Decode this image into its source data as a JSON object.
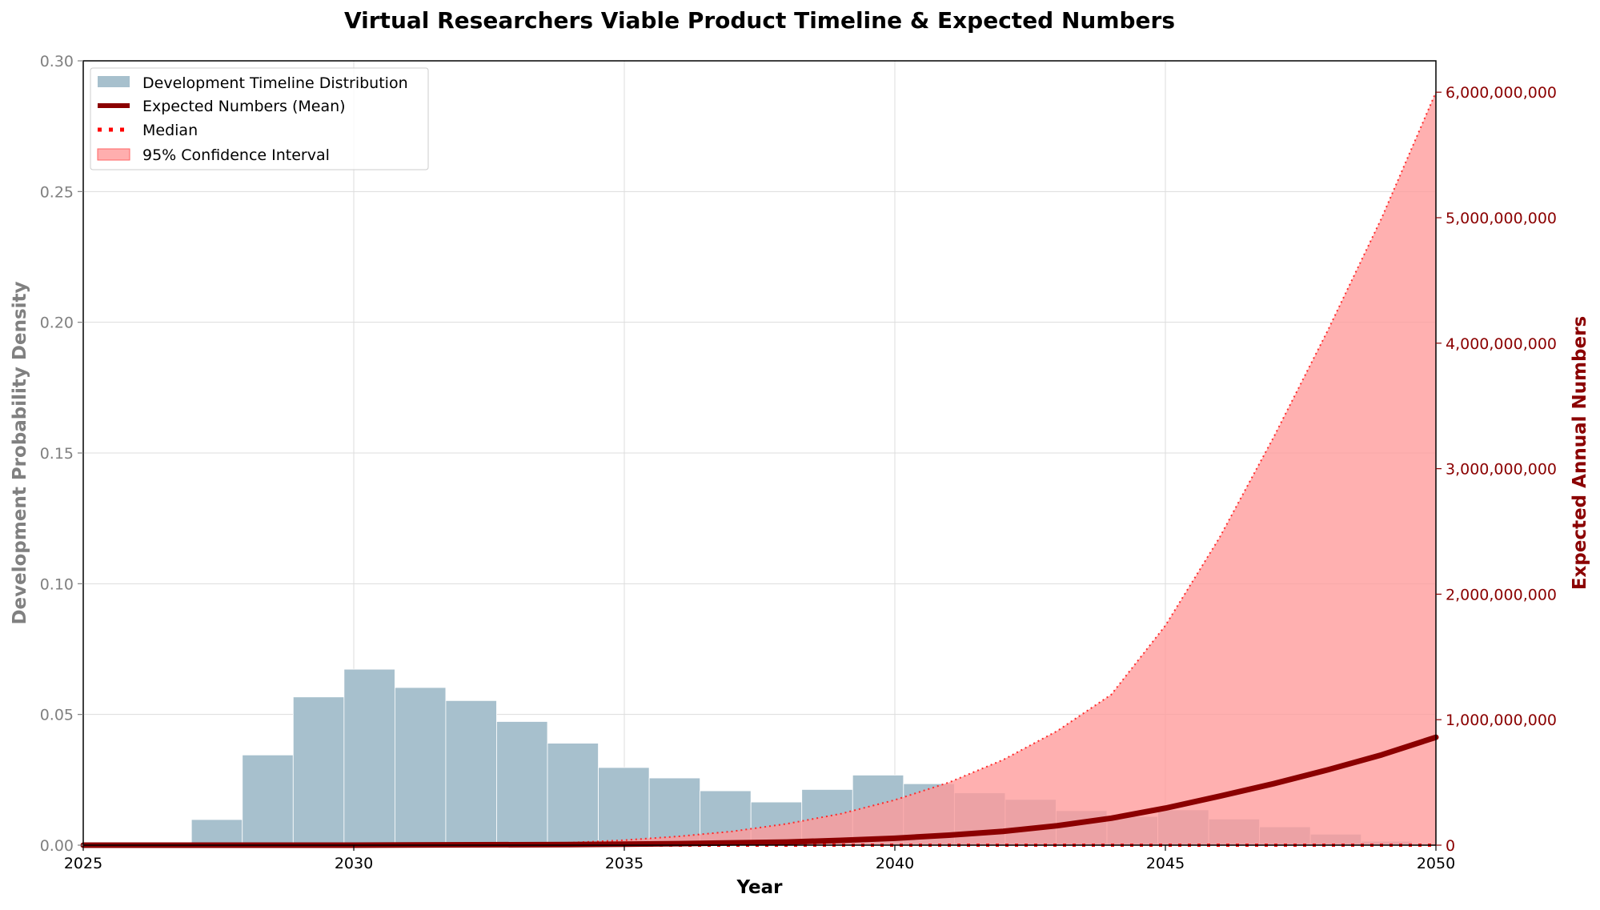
{
  "chart_data": {
    "type": "bar+line",
    "title": "Virtual Researchers Viable Product Timeline & Expected Numbers",
    "xlabel": "Year",
    "ylabel_left": "Development Probability Density",
    "ylabel_right": "Expected Annual Numbers",
    "xlim": [
      2025,
      2050
    ],
    "ylim_left": [
      0,
      0.3
    ],
    "ylim_right": [
      0,
      6250000000
    ],
    "x_ticks": [
      "2025",
      "2030",
      "2035",
      "2040",
      "2045",
      "2050"
    ],
    "y_left_ticks": [
      "0.00",
      "0.05",
      "0.10",
      "0.15",
      "0.20",
      "0.25",
      "0.30"
    ],
    "y_right_ticks": [
      "0",
      "1,000,000,000",
      "2,000,000,000",
      "3,000,000,000",
      "4,000,000,000",
      "5,000,000,000",
      "6,000,000,000"
    ],
    "grid": true,
    "legend_position": "top-left",
    "colors": {
      "histogram": "#a7c0cd",
      "mean": "#8b0000",
      "median": "#ff0000",
      "ci_fill": "#ff9a9a",
      "right_axis": "#8b0000",
      "left_axis": "#808080"
    },
    "histogram": {
      "name": "Development Timeline Distribution",
      "bin_edges": [
        2027.0,
        2027.94,
        2028.88,
        2029.82,
        2030.76,
        2031.7,
        2032.64,
        2033.58,
        2034.52,
        2035.46,
        2036.4,
        2037.34,
        2038.28,
        2039.22,
        2040.16,
        2041.1,
        2042.04,
        2042.98,
        2043.92,
        2044.86,
        2045.8,
        2046.74,
        2047.68,
        2048.62,
        2049.56
      ],
      "values": [
        0.0098,
        0.0345,
        0.0567,
        0.0673,
        0.0603,
        0.0553,
        0.0473,
        0.039,
        0.0297,
        0.0257,
        0.0208,
        0.0165,
        0.0213,
        0.0268,
        0.0235,
        0.02,
        0.0175,
        0.0132,
        0.011,
        0.0135,
        0.01,
        0.007,
        0.0042,
        0.0015
      ]
    },
    "series": [
      {
        "name": "Expected Numbers (Mean)",
        "x": [
          2025,
          2030,
          2034,
          2035,
          2036,
          2037,
          2038,
          2039,
          2040,
          2041,
          2042,
          2043,
          2044,
          2045,
          2046,
          2047,
          2048,
          2049,
          2050
        ],
        "values": [
          0,
          0,
          5000000,
          8000000,
          12000000,
          18000000,
          25000000,
          38000000,
          55000000,
          80000000,
          110000000,
          155000000,
          215000000,
          295000000,
          390000000,
          490000000,
          600000000,
          720000000,
          860000000
        ]
      },
      {
        "name": "Median",
        "x": [
          2025,
          2050
        ],
        "values": [
          0,
          0
        ]
      },
      {
        "name": "95% Confidence Interval",
        "x": [
          2025,
          2030,
          2033,
          2034,
          2035,
          2036,
          2037,
          2038,
          2039,
          2040,
          2041,
          2042,
          2043,
          2044,
          2045,
          2046,
          2047,
          2048,
          2049,
          2050
        ],
        "lower": [
          0,
          0,
          0,
          0,
          0,
          0,
          0,
          0,
          0,
          0,
          0,
          0,
          0,
          0,
          0,
          0,
          0,
          0,
          0,
          0
        ],
        "upper": [
          0,
          0,
          10000000,
          20000000,
          40000000,
          70000000,
          110000000,
          170000000,
          250000000,
          360000000,
          500000000,
          680000000,
          910000000,
          1200000000,
          1750000000,
          2450000000,
          3250000000,
          4100000000,
          5000000000,
          6000000000
        ]
      }
    ]
  }
}
